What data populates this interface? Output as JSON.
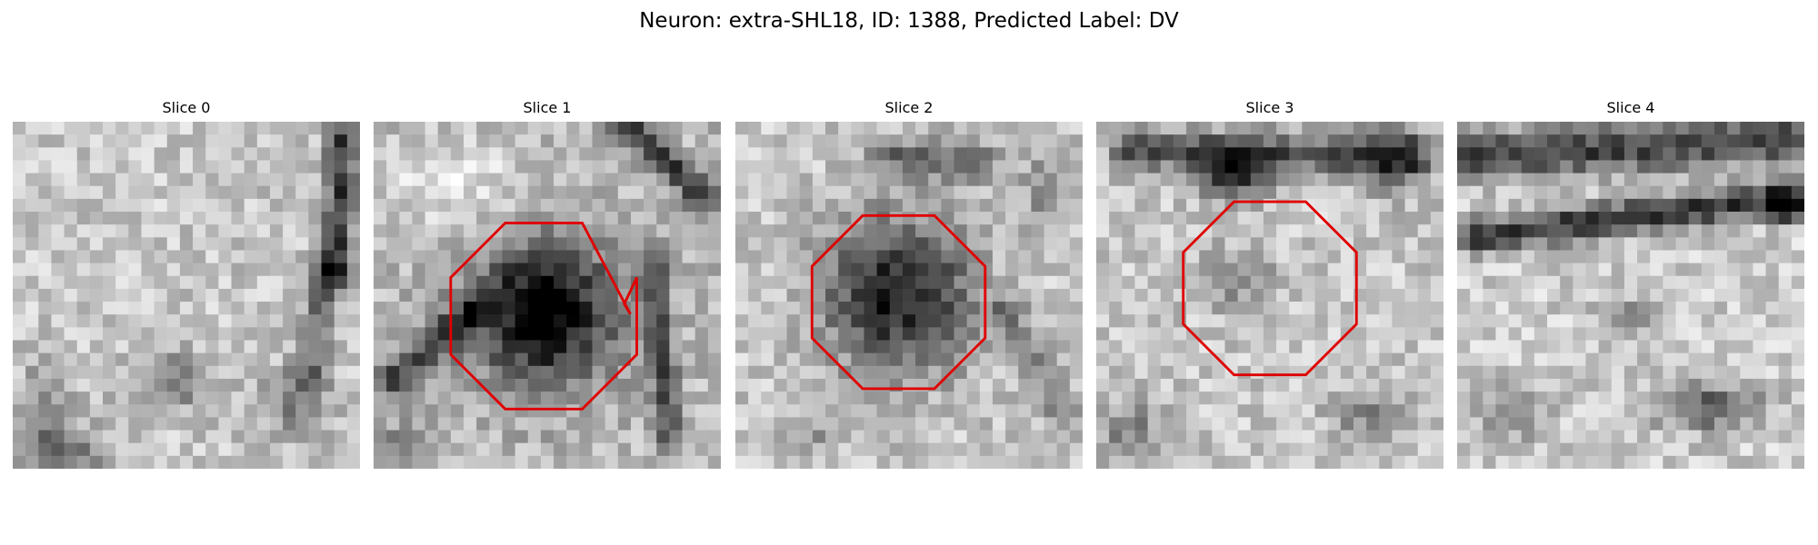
{
  "figure": {
    "title": "Neuron: extra-SHL18, ID: 1388, Predicted Label: DV"
  },
  "colors": {
    "outline": "#e00000",
    "background": "#ffffff",
    "colormap": "grayscale"
  },
  "slices": [
    {
      "title": "Slice 0",
      "roi": null,
      "content": "light mottled texture with dark streak at right edge and dark patches lower-left",
      "icon": "grayscale-image"
    },
    {
      "title": "Slice 1",
      "roi": {
        "shape": "octagon",
        "center": [
          0.49,
          0.56
        ],
        "radius": 0.29,
        "notched": true
      },
      "content": "very dark round blob centered inside outline, dark diagonal vessels",
      "icon": "grayscale-image"
    },
    {
      "title": "Slice 2",
      "roi": {
        "shape": "octagon",
        "center": [
          0.47,
          0.52
        ],
        "radius": 0.27,
        "notched": false
      },
      "content": "dark round blob centered inside outline, lighter surroundings",
      "icon": "grayscale-image"
    },
    {
      "title": "Slice 3",
      "roi": {
        "shape": "octagon",
        "center": [
          0.5,
          0.48
        ],
        "radius": 0.27,
        "notched": false
      },
      "content": "faint grey region inside outline, dark blob near top",
      "icon": "grayscale-image"
    },
    {
      "title": "Slice 4",
      "roi": null,
      "content": "dark band across upper portion, dark patch lower-right",
      "icon": "grayscale-image"
    }
  ]
}
